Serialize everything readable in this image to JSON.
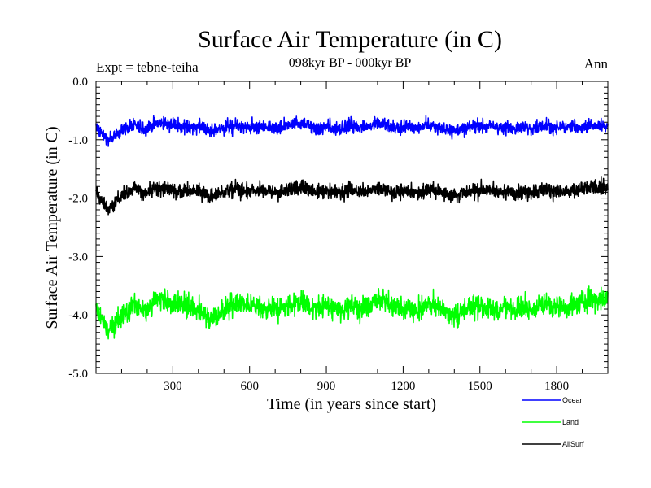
{
  "chart_data": {
    "type": "line",
    "title": "Surface Air Temperature (in C)",
    "subtitle": "098kyr BP - 000kyr BP",
    "experiment_label": "Expt = tebne-teiha",
    "period_label": "Ann",
    "xlabel": "Time (in years since start)",
    "ylabel": "Surface Air Temperature (in C)",
    "xlim": [
      0,
      2000
    ],
    "ylim": [
      -5.0,
      0.0
    ],
    "xticks": [
      300,
      600,
      900,
      1200,
      1500,
      1800
    ],
    "xtick_labels": [
      "300",
      "600",
      "900",
      "1200",
      "1500",
      "1800"
    ],
    "yticks": [
      0.0,
      -1.0,
      -2.0,
      -3.0,
      -4.0,
      -5.0
    ],
    "ytick_labels": [
      "0.0",
      "-1.0",
      "-2.0",
      "-3.0",
      "-4.0",
      "-5.0"
    ],
    "series": [
      {
        "name": "Ocean",
        "color": "#0000ff",
        "x": [
          0,
          50,
          100,
          150,
          200,
          250,
          300,
          350,
          400,
          450,
          500,
          550,
          600,
          650,
          700,
          750,
          800,
          850,
          900,
          950,
          1000,
          1050,
          1100,
          1150,
          1200,
          1250,
          1300,
          1350,
          1400,
          1450,
          1500,
          1550,
          1600,
          1650,
          1700,
          1750,
          1800,
          1850,
          1900,
          1950,
          2000
        ],
        "values": [
          -0.8,
          -1.0,
          -0.85,
          -0.75,
          -0.8,
          -0.7,
          -0.75,
          -0.8,
          -0.75,
          -0.85,
          -0.8,
          -0.75,
          -0.8,
          -0.78,
          -0.8,
          -0.75,
          -0.7,
          -0.8,
          -0.78,
          -0.8,
          -0.75,
          -0.8,
          -0.7,
          -0.8,
          -0.78,
          -0.8,
          -0.75,
          -0.8,
          -0.85,
          -0.8,
          -0.75,
          -0.78,
          -0.8,
          -0.78,
          -0.8,
          -0.75,
          -0.8,
          -0.78,
          -0.8,
          -0.75,
          -0.78
        ]
      },
      {
        "name": "Land",
        "color": "#00ff00",
        "x": [
          0,
          50,
          100,
          150,
          200,
          250,
          300,
          350,
          400,
          450,
          500,
          550,
          600,
          650,
          700,
          750,
          800,
          850,
          900,
          950,
          1000,
          1050,
          1100,
          1150,
          1200,
          1250,
          1300,
          1350,
          1400,
          1450,
          1500,
          1550,
          1600,
          1650,
          1700,
          1750,
          1800,
          1850,
          1900,
          1950,
          2000
        ],
        "values": [
          -3.9,
          -4.3,
          -4.0,
          -3.85,
          -3.9,
          -3.7,
          -3.8,
          -3.85,
          -3.9,
          -4.1,
          -3.9,
          -3.8,
          -3.85,
          -3.9,
          -3.9,
          -3.85,
          -3.75,
          -3.9,
          -3.85,
          -3.9,
          -3.85,
          -3.9,
          -3.7,
          -3.85,
          -3.9,
          -3.95,
          -3.8,
          -3.9,
          -4.0,
          -3.9,
          -3.85,
          -3.9,
          -3.9,
          -3.85,
          -3.9,
          -3.8,
          -3.85,
          -3.9,
          -3.8,
          -3.7,
          -3.75
        ]
      },
      {
        "name": "AllSurf",
        "color": "#000000",
        "x": [
          0,
          50,
          100,
          150,
          200,
          250,
          300,
          350,
          400,
          450,
          500,
          550,
          600,
          650,
          700,
          750,
          800,
          850,
          900,
          950,
          1000,
          1050,
          1100,
          1150,
          1200,
          1250,
          1300,
          1350,
          1400,
          1450,
          1500,
          1550,
          1600,
          1650,
          1700,
          1750,
          1800,
          1850,
          1900,
          1950,
          2000
        ],
        "values": [
          -1.9,
          -2.2,
          -1.95,
          -1.85,
          -1.9,
          -1.8,
          -1.85,
          -1.9,
          -1.85,
          -2.0,
          -1.9,
          -1.85,
          -1.9,
          -1.88,
          -1.9,
          -1.85,
          -1.8,
          -1.9,
          -1.88,
          -1.9,
          -1.85,
          -1.9,
          -1.8,
          -1.9,
          -1.88,
          -1.92,
          -1.85,
          -1.9,
          -1.95,
          -1.9,
          -1.85,
          -1.88,
          -1.9,
          -1.88,
          -1.9,
          -1.85,
          -1.88,
          -1.9,
          -1.85,
          -1.8,
          -1.85
        ]
      }
    ],
    "noise_amplitude": {
      "Ocean": 0.18,
      "Land": 0.3,
      "AllSurf": 0.2
    },
    "legend": [
      {
        "name": "Ocean",
        "color": "#0000ff"
      },
      {
        "name": "Land",
        "color": "#00ff00"
      },
      {
        "name": "AllSurf",
        "color": "#000000"
      }
    ],
    "legend_position": "bottom-right"
  }
}
